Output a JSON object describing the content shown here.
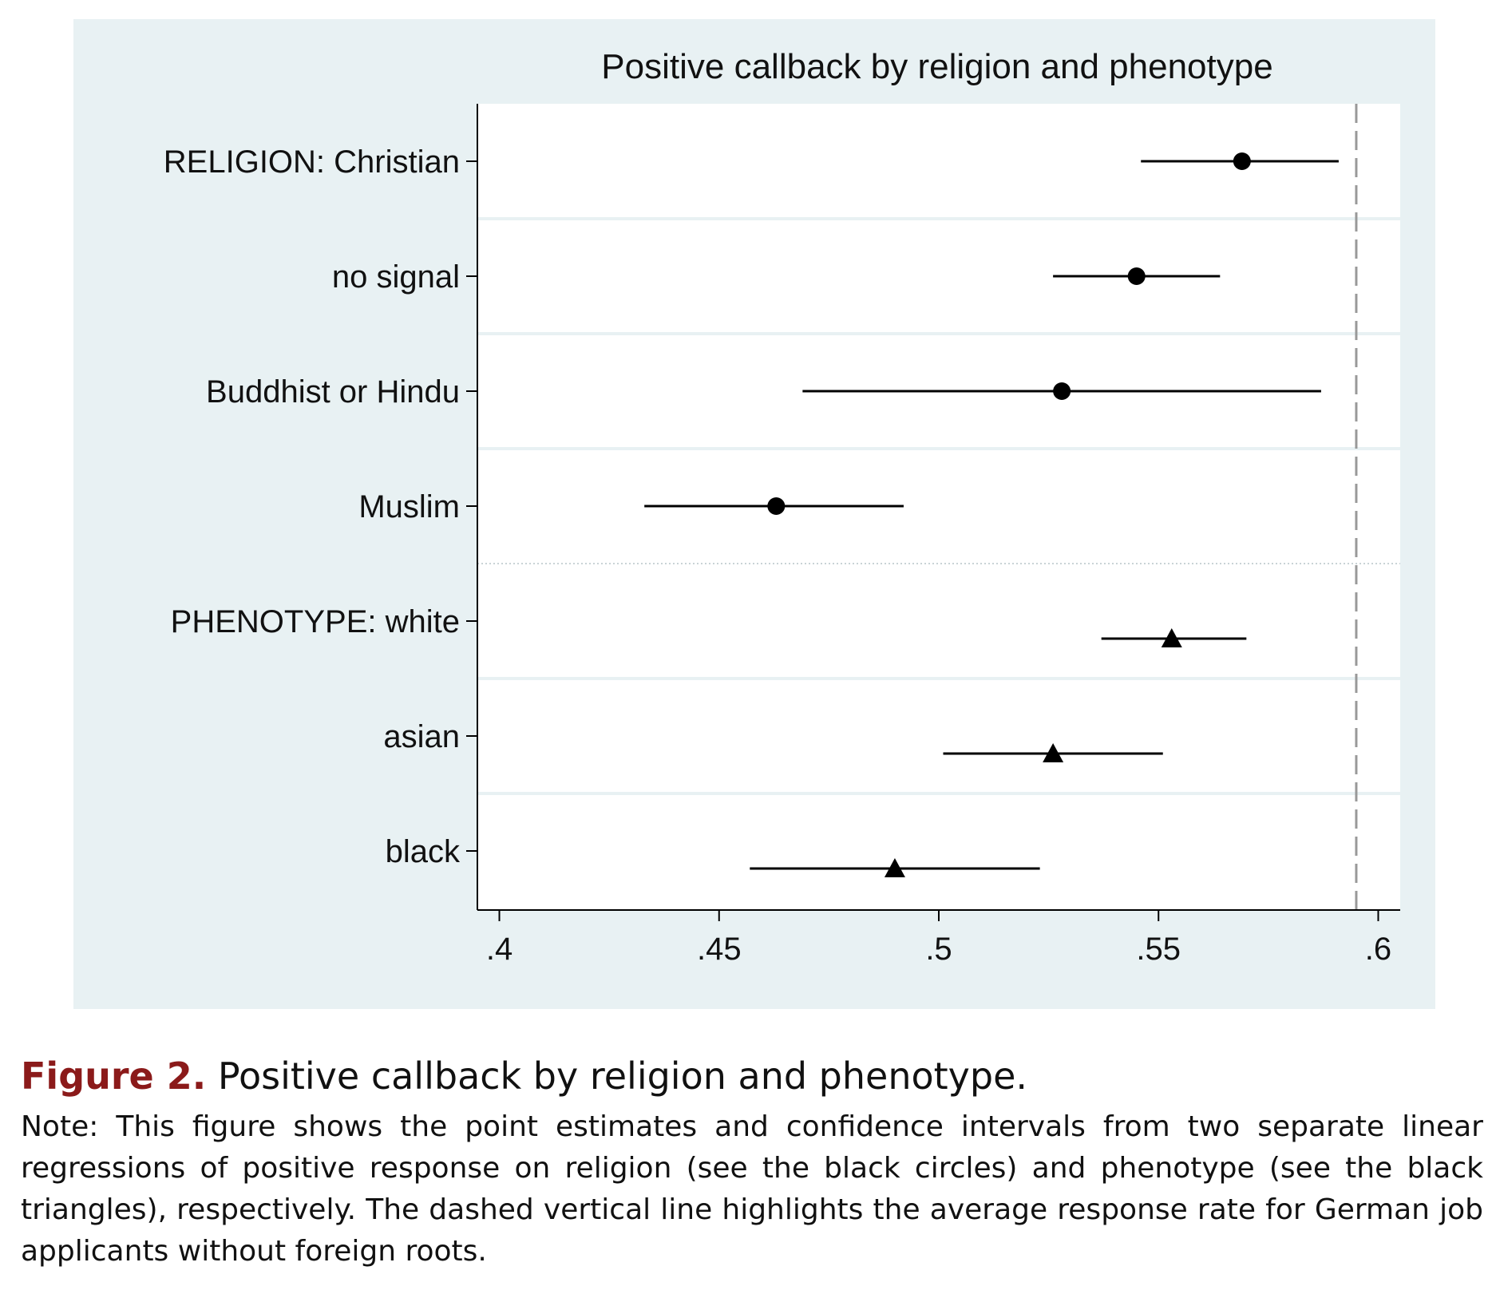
{
  "chart_data": {
    "type": "scatter",
    "title": "Positive callback by religion and phenotype",
    "xlabel": "",
    "ylabel": "",
    "xlim": [
      0.395,
      0.605
    ],
    "xticks": [
      0.4,
      0.45,
      0.5,
      0.55,
      0.6
    ],
    "xtick_labels": [
      ".4",
      ".45",
      ".5",
      ".55",
      ".6"
    ],
    "reference_line": {
      "x": 0.595,
      "style": "dashed",
      "color": "#999999"
    },
    "grid": true,
    "groups": [
      {
        "marker": "circle",
        "rows": [
          {
            "label": "RELIGION: Christian",
            "estimate": 0.569,
            "ci": [
              0.546,
              0.591
            ]
          },
          {
            "label": "no signal",
            "estimate": 0.545,
            "ci": [
              0.526,
              0.564
            ]
          },
          {
            "label": "Buddhist or Hindu",
            "estimate": 0.528,
            "ci": [
              0.469,
              0.587
            ]
          },
          {
            "label": "Muslim",
            "estimate": 0.463,
            "ci": [
              0.433,
              0.492
            ]
          }
        ]
      },
      {
        "marker": "triangle",
        "rows": [
          {
            "label": "PHENOTYPE: white",
            "estimate": 0.553,
            "ci": [
              0.537,
              0.57
            ]
          },
          {
            "label": "asian",
            "estimate": 0.526,
            "ci": [
              0.501,
              0.551
            ]
          },
          {
            "label": "black",
            "estimate": 0.49,
            "ci": [
              0.457,
              0.523
            ]
          }
        ]
      }
    ],
    "colors": {
      "panel_bg": "#e8f1f3",
      "plot_bg": "#ffffff",
      "marks": "#000000",
      "gridline": "#e8f1f3"
    }
  },
  "caption": {
    "label": "Figure 2.",
    "title": " Positive callback by religion and phenotype.",
    "note": "Note: This figure shows the point estimates and confidence intervals from two separate linear regressions of positive response on religion (see the black circles) and phenotype (see the black triangles), respectively. The dashed vertical line highlights the average response rate for German job applicants without foreign roots."
  }
}
